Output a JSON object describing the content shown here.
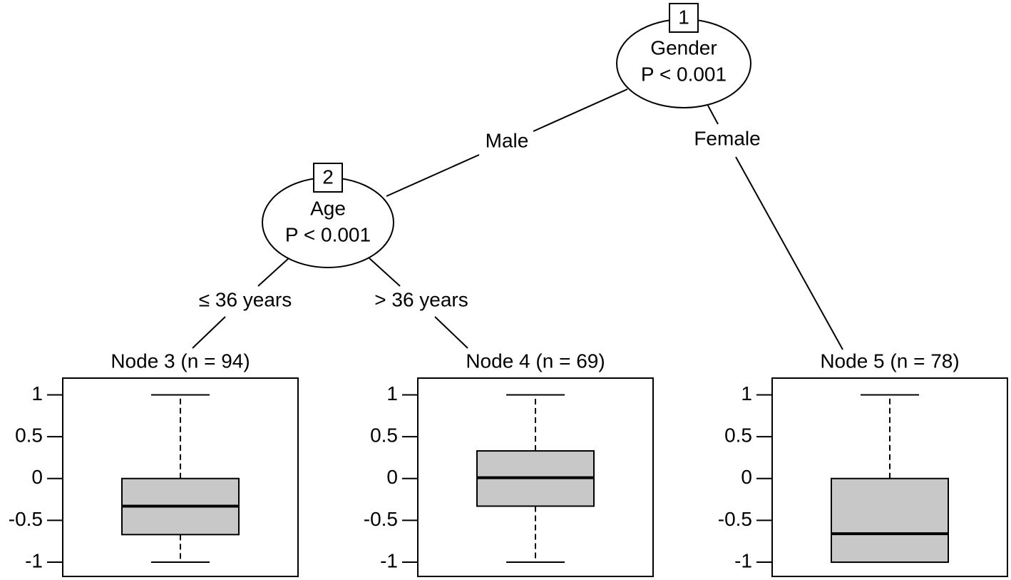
{
  "tree": {
    "nodes": [
      {
        "id": "1",
        "variable": "Gender",
        "p": "P < 0.001"
      },
      {
        "id": "2",
        "variable": "Age",
        "p": "P < 0.001"
      }
    ],
    "edges": [
      "Male",
      "Female",
      "≤ 36 years",
      "> 36 years"
    ]
  },
  "chart_data": [
    {
      "type": "box",
      "title": "Node 3 (n = 94)",
      "box": {
        "min": -1,
        "q1": -0.67,
        "median": -0.33,
        "q3": 0,
        "max": 1
      },
      "ylim": [
        -1.17,
        1.2
      ],
      "yticks": [
        1,
        0.5,
        0,
        -0.5,
        -1
      ],
      "color": "#c8c8c8"
    },
    {
      "type": "box",
      "title": "Node 4 (n = 69)",
      "box": {
        "min": -1,
        "q1": -0.33,
        "median": 0.01,
        "q3": 0.33,
        "max": 1
      },
      "ylim": [
        -1.17,
        1.2
      ],
      "yticks": [
        1,
        0.5,
        0,
        -0.5,
        -1
      ],
      "color": "#c8c8c8"
    },
    {
      "type": "box",
      "title": "Node 5 (n = 78)",
      "box": {
        "min": -1,
        "q1": -1,
        "median": -0.66,
        "q3": 0,
        "max": 1
      },
      "ylim": [
        -1.17,
        1.2
      ],
      "yticks": [
        1,
        0.5,
        0,
        -0.5,
        -1
      ],
      "color": "#c8c8c8"
    }
  ]
}
